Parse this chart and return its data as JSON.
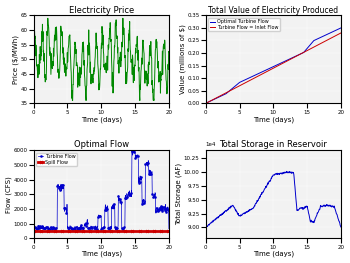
{
  "title_top_left": "Electricity Price",
  "title_top_right": "Total Value of Electricity Produced",
  "title_bot_left": "Optimal Flow",
  "title_bot_right": "Total Storage in Reservoir",
  "xlabel": "Time (days)",
  "ylabel_tl": "Price ($/MWh)",
  "ylabel_tr": "Value (millions of $)",
  "ylabel_bl": "Flow (CFS)",
  "ylabel_br": "Total Storage (AF)",
  "legend_bl": [
    "Turbine Flow",
    "Spill Flow"
  ],
  "legend_tr": [
    "Optimal Turbine Flow",
    "Turbine Flow = Inlet Flow"
  ],
  "bg_color": "#f2f2f2",
  "line_color_green": "#008800",
  "line_color_blue": "#0000cc",
  "line_color_red": "#cc0000",
  "price_ylim": [
    35,
    65
  ],
  "price_yticks": [
    35,
    40,
    45,
    50,
    55,
    60,
    65
  ],
  "val_ylim": [
    0,
    0.35
  ],
  "val_yticks": [
    0,
    0.05,
    0.1,
    0.15,
    0.2,
    0.25,
    0.3,
    0.35
  ],
  "flow_ylim": [
    0,
    6000
  ],
  "flow_yticks": [
    0,
    1000,
    2000,
    3000,
    4000,
    5000,
    6000
  ],
  "stor_ylim": [
    88000.0,
    104000.0
  ],
  "xticks": [
    0,
    5,
    10,
    15,
    20
  ],
  "xlim": [
    0,
    20
  ]
}
